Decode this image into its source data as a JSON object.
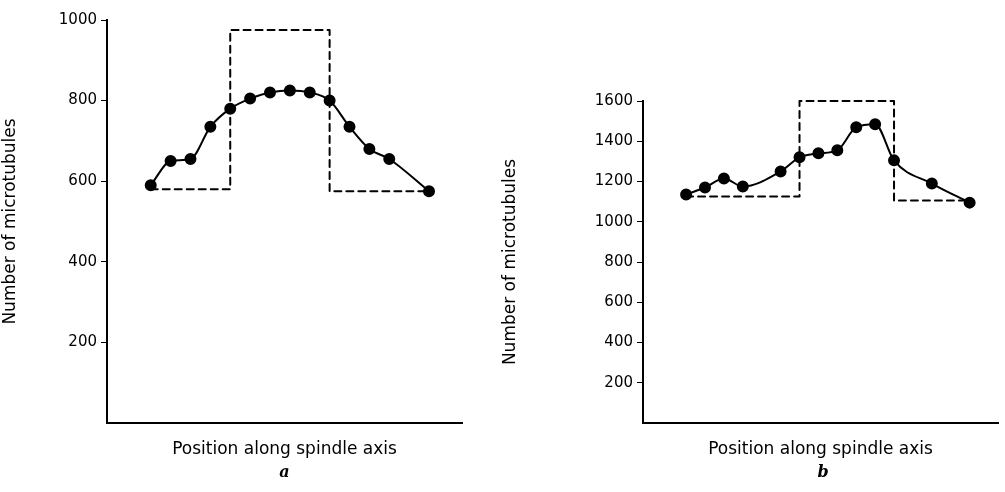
{
  "chart_data": [
    {
      "type": "line",
      "xlabel": "Position along spindle axis",
      "ylabel": "Number of microtubules",
      "categories": [
        null,
        null,
        null,
        null,
        null,
        null,
        null,
        null,
        null,
        null,
        null,
        null,
        null,
        null,
        null
      ],
      "series": [
        {
          "color": "#000000",
          "marker": "circle",
          "values": [
            590,
            650,
            655,
            735,
            780,
            805,
            820,
            825,
            820,
            800,
            735,
            680,
            655,
            null,
            575
          ]
        },
        {
          "type": "step",
          "color": "#000000",
          "marker": "none",
          "line_style": "dashed",
          "values": [
            580,
            580,
            580,
            580,
            975,
            975,
            975,
            975,
            975,
            575,
            575,
            575,
            575,
            575,
            575
          ]
        }
      ],
      "ylim": [
        0,
        1000
      ],
      "yticks": [
        200,
        400,
        600,
        800,
        1000
      ],
      "tick_labels": "y",
      "grid": false,
      "legend": false,
      "annotations": [
        "a"
      ]
    },
    {
      "type": "line",
      "xlabel": "Position along spindle axis",
      "ylabel": "Number of microtubules",
      "categories": [
        null,
        null,
        null,
        null,
        null,
        null,
        null,
        null,
        null,
        null,
        null,
        null,
        null,
        null,
        null,
        null
      ],
      "series": [
        {
          "color": "#000000",
          "marker": "circle",
          "values": [
            1135,
            1170,
            1215,
            1175,
            null,
            1250,
            1320,
            1340,
            1355,
            1470,
            1485,
            1305,
            null,
            1190,
            null,
            1095
          ]
        },
        {
          "type": "step",
          "color": "#000000",
          "marker": "none",
          "line_style": "dashed",
          "values": [
            1125,
            1125,
            1125,
            1125,
            1125,
            1125,
            1600,
            1600,
            1600,
            1600,
            1600,
            1105,
            1105,
            1105,
            1105,
            1105
          ]
        }
      ],
      "ylim": [
        0,
        1600
      ],
      "yticks": [
        200,
        400,
        600,
        800,
        1000,
        1200,
        1400,
        1600
      ],
      "tick_labels": "y",
      "grid": false,
      "legend": false,
      "annotations": [
        "b"
      ]
    }
  ]
}
